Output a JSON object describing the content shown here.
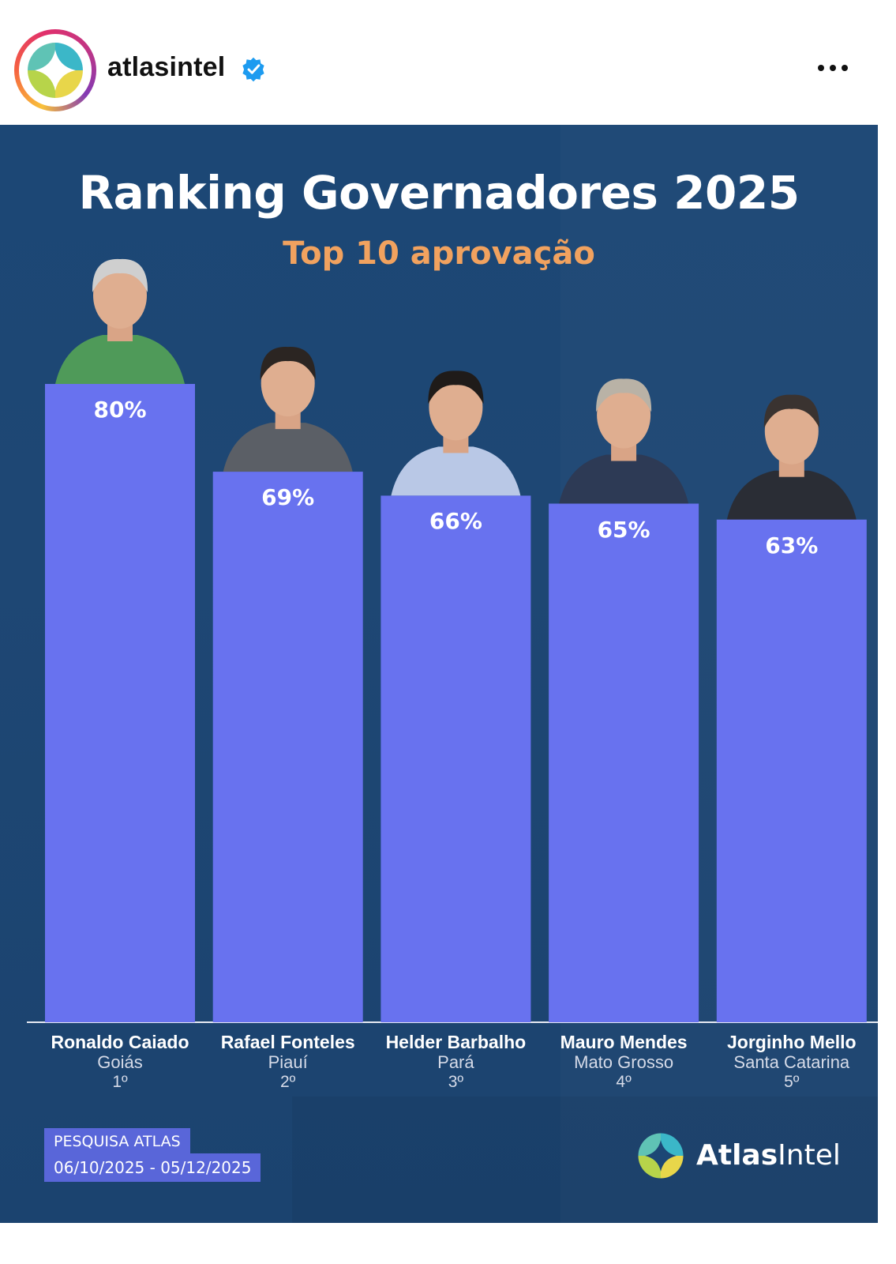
{
  "header": {
    "username": "atlasintel",
    "verified_icon": "verified-badge-icon",
    "more_icon": "more-options-icon"
  },
  "infographic": {
    "title": "Ranking Governadores 2025",
    "subtitle": "Top 10 aprovação",
    "source_line1": "PESQUISA ATLAS",
    "source_line2": "06/10/2025 - 05/12/2025",
    "brand_name_bold": "Atlas",
    "brand_name_light": "Intel",
    "colors": {
      "background": "#1c4775",
      "bar": "#6872ef",
      "subtitle": "#f1a25f",
      "text": "#ffffff"
    }
  },
  "chart_data": {
    "type": "bar",
    "title": "Ranking Governadores 2025",
    "subtitle": "Top 10 aprovação",
    "categories": [
      "Ronaldo Caiado",
      "Rafael Fonteles",
      "Helder Barbalho",
      "Mauro Mendes",
      "Jorginho Mello"
    ],
    "states": [
      "Goiás",
      "Piauí",
      "Pará",
      "Mato Grosso",
      "Santa Catarina"
    ],
    "ranks": [
      "1º",
      "2º",
      "3º",
      "4º",
      "5º"
    ],
    "values": [
      80,
      69,
      66,
      65,
      63
    ],
    "value_labels": [
      "80%",
      "69%",
      "66%",
      "65%",
      "63%"
    ],
    "ylim": [
      0,
      80
    ],
    "grid": false
  }
}
